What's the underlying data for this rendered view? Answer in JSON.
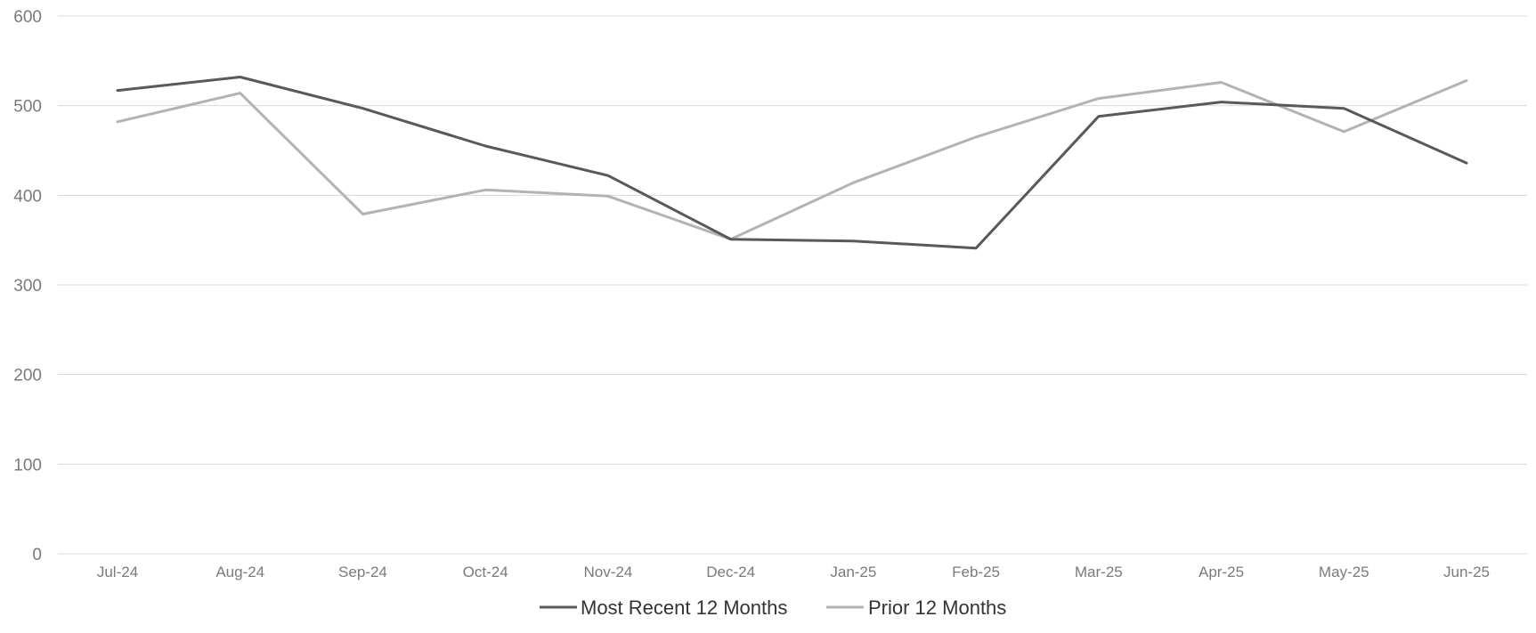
{
  "chart_data": {
    "type": "line",
    "title": "",
    "xlabel": "",
    "ylabel": "",
    "categories": [
      "Jul-24",
      "Aug-24",
      "Sep-24",
      "Oct-24",
      "Nov-24",
      "Dec-24",
      "Jan-25",
      "Feb-25",
      "Mar-25",
      "Apr-25",
      "May-25",
      "Jun-25"
    ],
    "series": [
      {
        "name": "Most Recent 12 Months",
        "color": "#595959",
        "values": [
          517,
          532,
          497,
          455,
          422,
          351,
          349,
          341,
          488,
          504,
          497,
          436
        ]
      },
      {
        "name": "Prior 12 Months",
        "color": "#b3b3b3",
        "values": [
          482,
          514,
          379,
          406,
          399,
          351,
          414,
          465,
          508,
          526,
          471,
          528
        ]
      }
    ],
    "ylim": [
      0,
      600
    ],
    "yticks": [
      0,
      100,
      200,
      300,
      400,
      500,
      600
    ],
    "grid": true,
    "legend_position": "bottom-center"
  }
}
